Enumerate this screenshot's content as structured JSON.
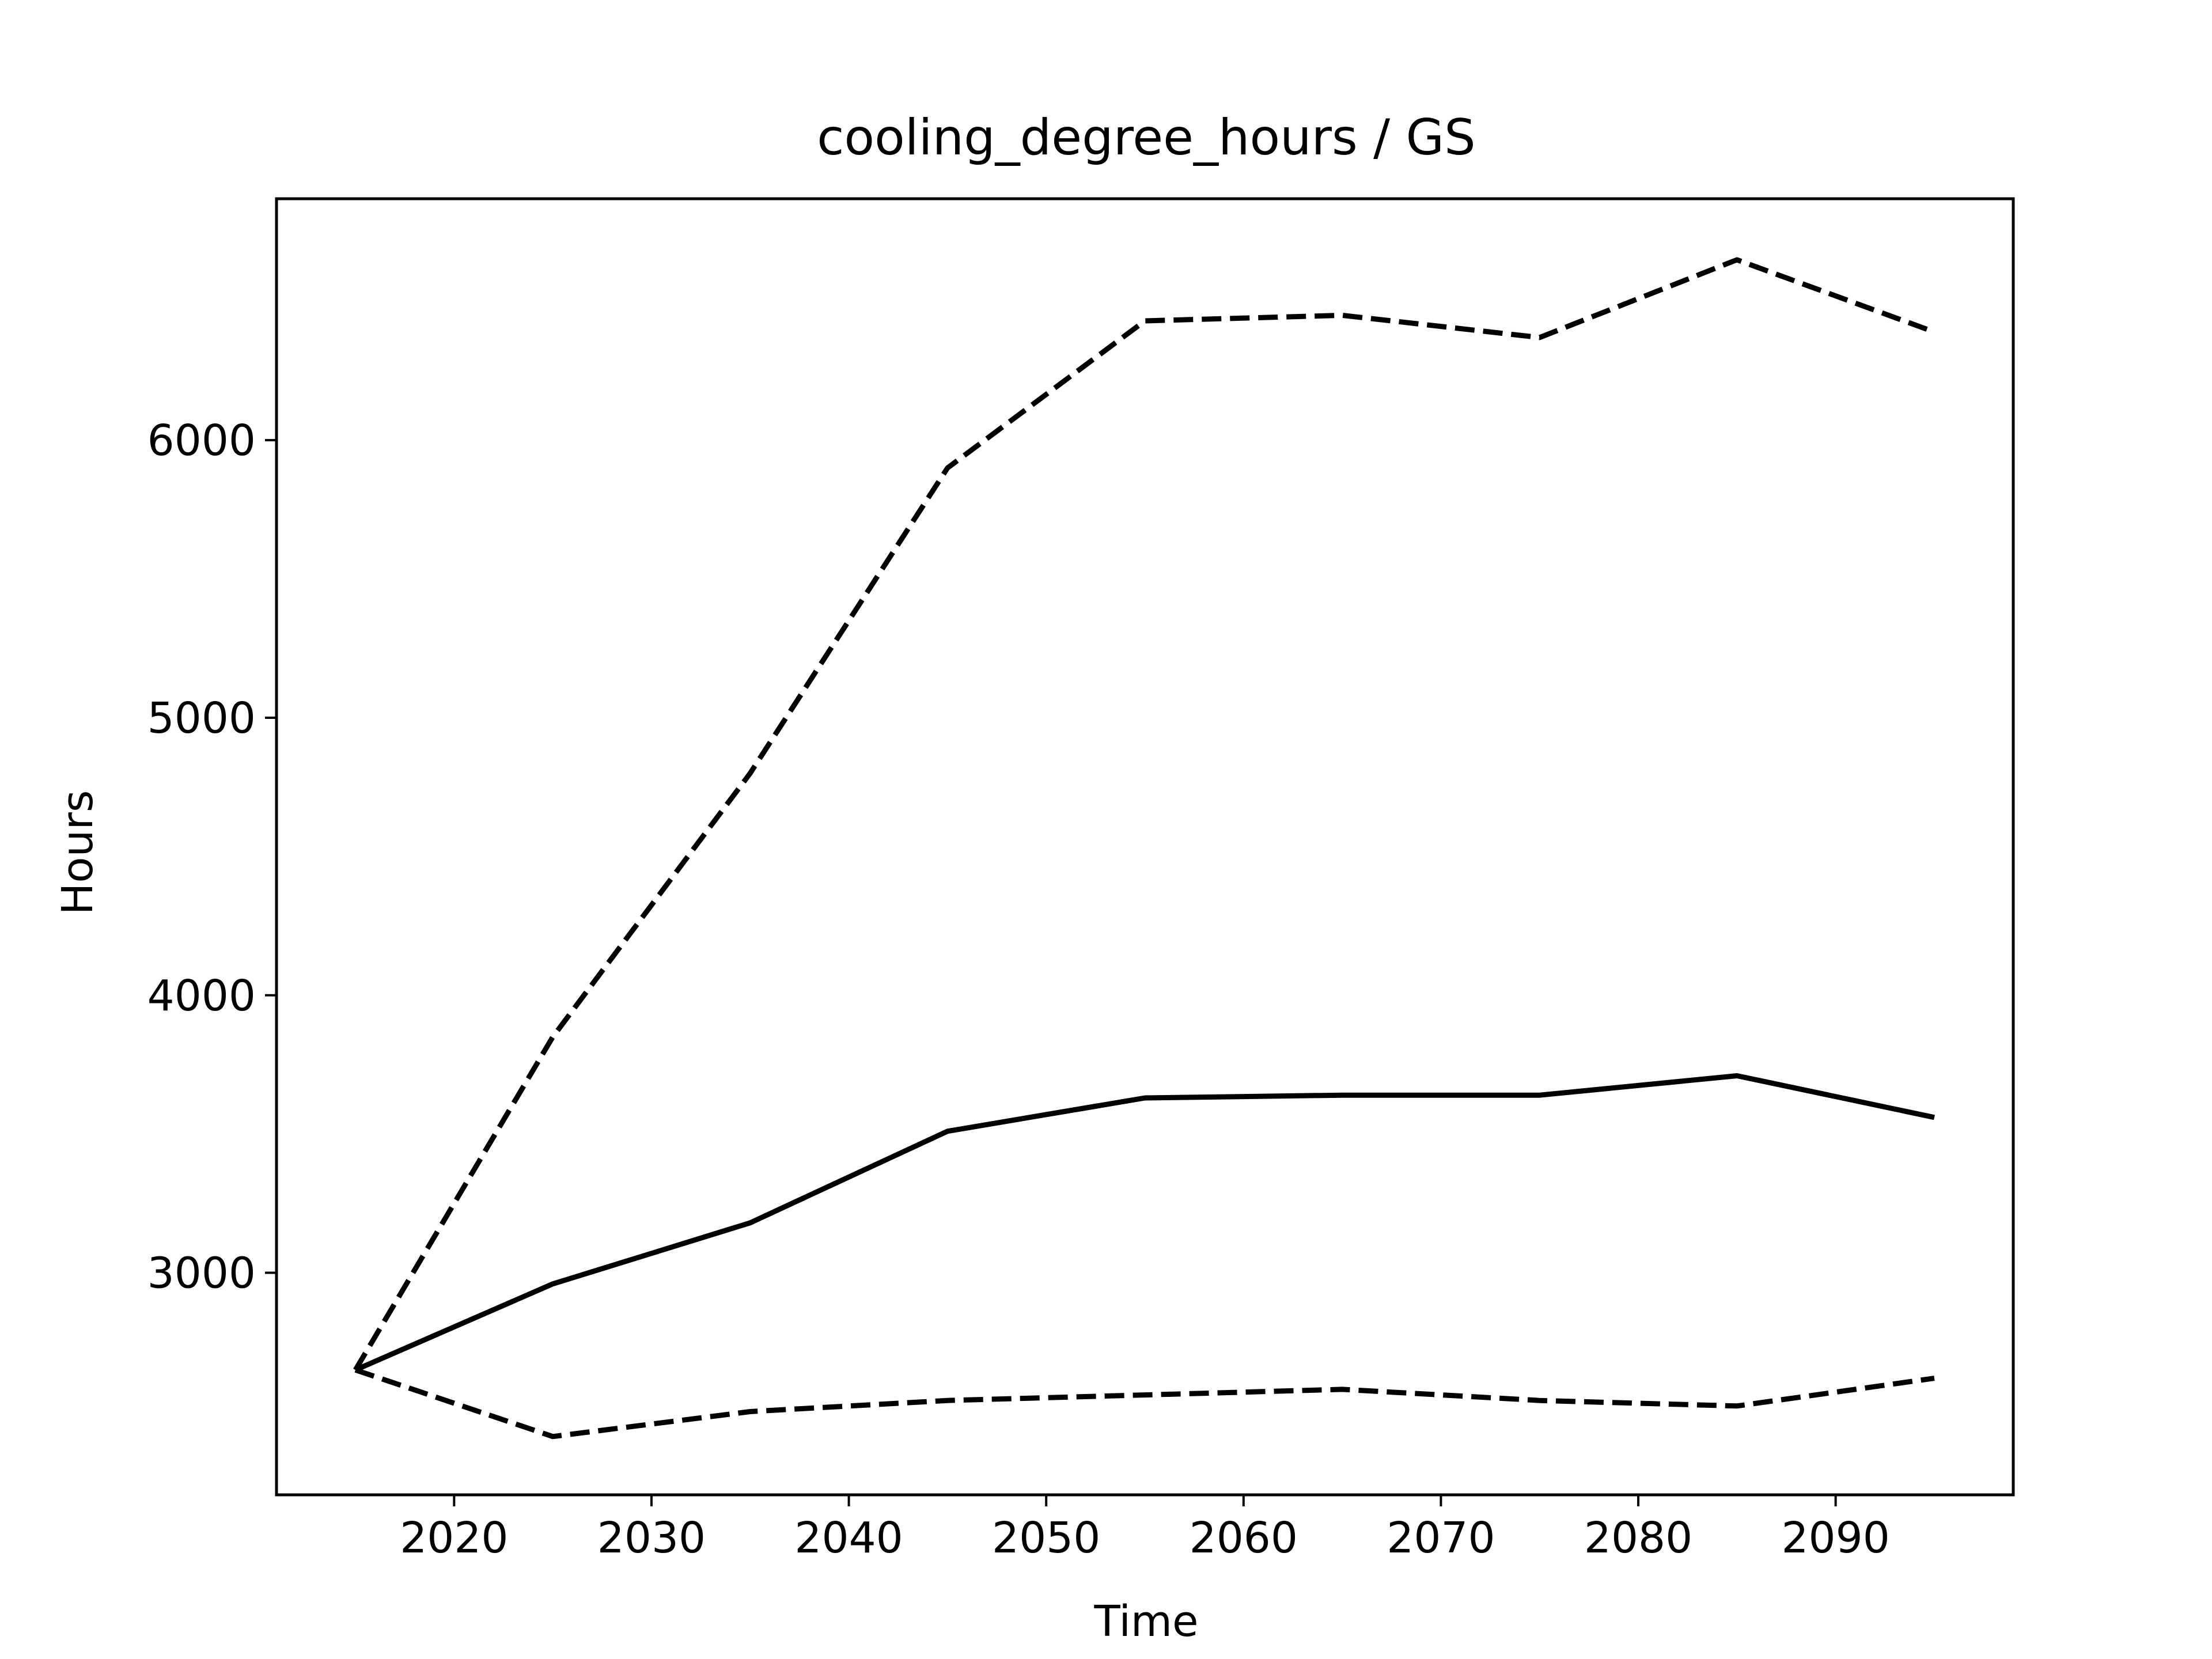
{
  "chart_data": {
    "type": "line",
    "title": "cooling_degree_hours / GS",
    "xlabel": "Time",
    "ylabel": "Hours",
    "xlim": [
      2011,
      2099
    ],
    "ylim": [
      2200,
      6870
    ],
    "xticks": [
      2020,
      2030,
      2040,
      2050,
      2060,
      2070,
      2080,
      2090
    ],
    "yticks": [
      3000,
      4000,
      5000,
      6000
    ],
    "x": [
      2015,
      2025,
      2035,
      2045,
      2055,
      2065,
      2075,
      2085,
      2095
    ],
    "grid": false,
    "series": [
      {
        "style": "dashed",
        "color": "#000000",
        "values": [
          2650,
          3850,
          4800,
          5900,
          6430,
          6450,
          6370,
          6650,
          6390
        ]
      },
      {
        "style": "solid",
        "color": "#000000",
        "values": [
          2650,
          2960,
          3180,
          3510,
          3630,
          3640,
          3640,
          3710,
          3560
        ]
      },
      {
        "style": "dashed",
        "color": "#000000",
        "values": [
          2650,
          2410,
          2500,
          2540,
          2560,
          2580,
          2540,
          2520,
          2620
        ]
      }
    ]
  }
}
